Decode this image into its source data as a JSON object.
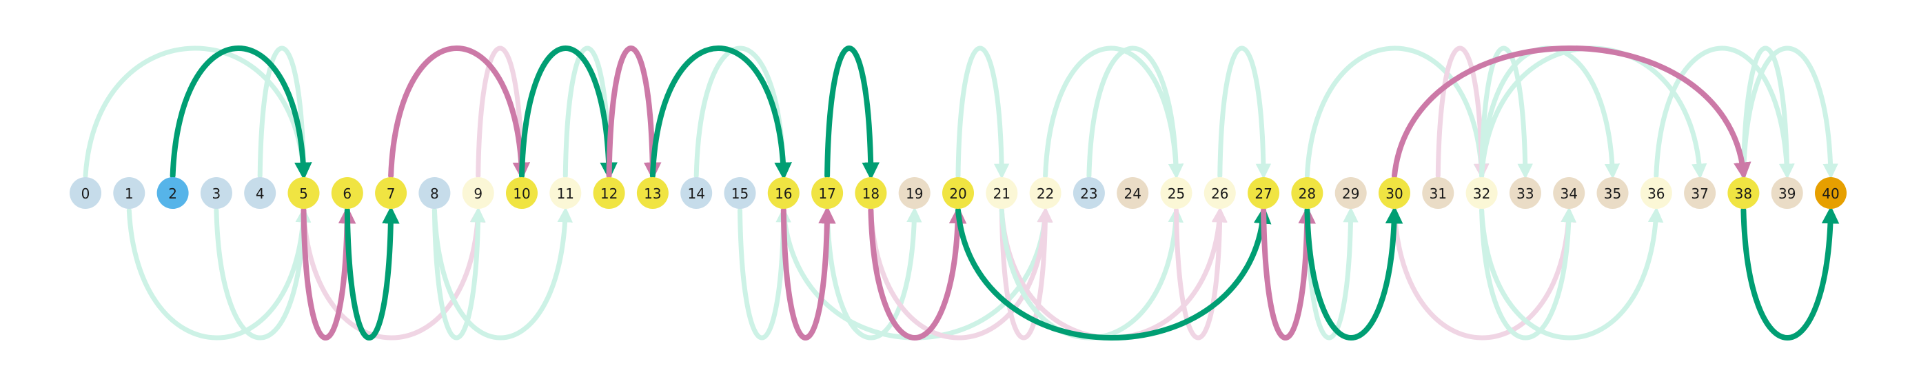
{
  "colors": {
    "start": "#56b4e9",
    "goal": "#e69f00",
    "path_node": "#f0e442",
    "visited": "#c6dcea",
    "frontier": "#fbf7d6",
    "pending": "#eadcc6",
    "forward_jump": "#009e73",
    "backward_jump": "#cc79a7",
    "forward_jump_faded": "#cdf2e6",
    "backward_jump_faded": "#f0d5e4"
  },
  "nodes": [
    {
      "label": "0",
      "state": "visited"
    },
    {
      "label": "1",
      "state": "visited"
    },
    {
      "label": "2",
      "state": "start"
    },
    {
      "label": "3",
      "state": "visited"
    },
    {
      "label": "4",
      "state": "visited"
    },
    {
      "label": "5",
      "state": "path_node"
    },
    {
      "label": "6",
      "state": "path_node"
    },
    {
      "label": "7",
      "state": "path_node"
    },
    {
      "label": "8",
      "state": "visited"
    },
    {
      "label": "9",
      "state": "frontier"
    },
    {
      "label": "10",
      "state": "path_node"
    },
    {
      "label": "11",
      "state": "frontier"
    },
    {
      "label": "12",
      "state": "path_node"
    },
    {
      "label": "13",
      "state": "path_node"
    },
    {
      "label": "14",
      "state": "visited"
    },
    {
      "label": "15",
      "state": "visited"
    },
    {
      "label": "16",
      "state": "path_node"
    },
    {
      "label": "17",
      "state": "path_node"
    },
    {
      "label": "18",
      "state": "path_node"
    },
    {
      "label": "19",
      "state": "pending"
    },
    {
      "label": "20",
      "state": "path_node"
    },
    {
      "label": "21",
      "state": "frontier"
    },
    {
      "label": "22",
      "state": "frontier"
    },
    {
      "label": "23",
      "state": "visited"
    },
    {
      "label": "24",
      "state": "pending"
    },
    {
      "label": "25",
      "state": "frontier"
    },
    {
      "label": "26",
      "state": "frontier"
    },
    {
      "label": "27",
      "state": "path_node"
    },
    {
      "label": "28",
      "state": "path_node"
    },
    {
      "label": "29",
      "state": "pending"
    },
    {
      "label": "30",
      "state": "path_node"
    },
    {
      "label": "31",
      "state": "pending"
    },
    {
      "label": "32",
      "state": "frontier"
    },
    {
      "label": "33",
      "state": "pending"
    },
    {
      "label": "34",
      "state": "pending"
    },
    {
      "label": "35",
      "state": "pending"
    },
    {
      "label": "36",
      "state": "frontier"
    },
    {
      "label": "37",
      "state": "pending"
    },
    {
      "label": "38",
      "state": "path_node"
    },
    {
      "label": "39",
      "state": "pending"
    },
    {
      "label": "40",
      "state": "goal"
    }
  ],
  "arcs": [
    {
      "from": 0,
      "to": 5,
      "side": "above",
      "peak": 0.8,
      "kind": "forward_jump_faded"
    },
    {
      "from": 4,
      "to": 5,
      "side": "above",
      "peak": 0.8,
      "kind": "forward_jump_faded"
    },
    {
      "from": 1,
      "to": 5,
      "side": "below",
      "peak": 0.8,
      "kind": "forward_jump_faded"
    },
    {
      "from": 3,
      "to": 5,
      "side": "below",
      "peak": 0.8,
      "kind": "forward_jump_faded"
    },
    {
      "from": 5,
      "to": 9,
      "side": "below",
      "peak": 0.8,
      "kind": "backward_jump_faded"
    },
    {
      "from": 8,
      "to": 11,
      "side": "below",
      "peak": 0.8,
      "kind": "forward_jump_faded"
    },
    {
      "from": 9,
      "to": 10,
      "side": "above",
      "peak": 0.8,
      "kind": "backward_jump_faded"
    },
    {
      "from": 8,
      "to": 9,
      "side": "below",
      "peak": 0.8,
      "kind": "forward_jump_faded"
    },
    {
      "from": 11,
      "to": 12,
      "side": "above",
      "peak": 0.8,
      "kind": "forward_jump_faded"
    },
    {
      "from": 14,
      "to": 16,
      "side": "above",
      "peak": 0.8,
      "kind": "forward_jump_faded"
    },
    {
      "from": 15,
      "to": 16,
      "side": "below",
      "peak": 0.8,
      "kind": "forward_jump_faded"
    },
    {
      "from": 17,
      "to": 19,
      "side": "below",
      "peak": 0.8,
      "kind": "forward_jump_faded"
    },
    {
      "from": 16,
      "to": 22,
      "side": "below",
      "peak": 0.8,
      "kind": "forward_jump_faded"
    },
    {
      "from": 18,
      "to": 22,
      "side": "below",
      "peak": 0.8,
      "kind": "backward_jump_faded"
    },
    {
      "from": 20,
      "to": 21,
      "side": "above",
      "peak": 0.8,
      "kind": "forward_jump_faded"
    },
    {
      "from": 21,
      "to": 22,
      "side": "below",
      "peak": 0.8,
      "kind": "backward_jump_faded"
    },
    {
      "from": 22,
      "to": 25,
      "side": "above",
      "peak": 0.8,
      "kind": "forward_jump_faded"
    },
    {
      "from": 23,
      "to": 25,
      "side": "above",
      "peak": 0.8,
      "kind": "forward_jump_faded"
    },
    {
      "from": 21,
      "to": 26,
      "side": "below",
      "peak": 0.8,
      "kind": "backward_jump_faded"
    },
    {
      "from": 21,
      "to": 25,
      "side": "below",
      "peak": 0.8,
      "kind": "forward_jump_faded"
    },
    {
      "from": 25,
      "to": 26,
      "side": "below",
      "peak": 0.8,
      "kind": "backward_jump_faded"
    },
    {
      "from": 26,
      "to": 27,
      "side": "above",
      "peak": 0.8,
      "kind": "forward_jump_faded"
    },
    {
      "from": 28,
      "to": 32,
      "side": "above",
      "peak": 0.8,
      "kind": "forward_jump_faded"
    },
    {
      "from": 28,
      "to": 29,
      "side": "below",
      "peak": 0.8,
      "kind": "forward_jump_faded"
    },
    {
      "from": 31,
      "to": 32,
      "side": "above",
      "peak": 0.8,
      "kind": "backward_jump_faded"
    },
    {
      "from": 32,
      "to": 33,
      "side": "above",
      "peak": 0.8,
      "kind": "forward_jump_faded"
    },
    {
      "from": 32,
      "to": 35,
      "side": "above",
      "peak": 0.8,
      "kind": "forward_jump_faded"
    },
    {
      "from": 32,
      "to": 37,
      "side": "above",
      "peak": 0.8,
      "kind": "forward_jump_faded"
    },
    {
      "from": 30,
      "to": 34,
      "side": "below",
      "peak": 0.8,
      "kind": "backward_jump_faded"
    },
    {
      "from": 32,
      "to": 34,
      "side": "below",
      "peak": 0.8,
      "kind": "forward_jump_faded"
    },
    {
      "from": 32,
      "to": 36,
      "side": "below",
      "peak": 0.8,
      "kind": "forward_jump_faded"
    },
    {
      "from": 36,
      "to": 39,
      "side": "above",
      "peak": 0.8,
      "kind": "forward_jump_faded"
    },
    {
      "from": 38,
      "to": 39,
      "side": "above",
      "peak": 0.8,
      "kind": "forward_jump_faded"
    },
    {
      "from": 38,
      "to": 40,
      "side": "above",
      "peak": 0.8,
      "kind": "forward_jump_faded"
    },
    {
      "from": 2,
      "to": 5,
      "side": "above",
      "peak": 0.8,
      "kind": "forward_jump"
    },
    {
      "from": 5,
      "to": 6,
      "side": "below",
      "peak": 0.8,
      "kind": "backward_jump"
    },
    {
      "from": 6,
      "to": 7,
      "side": "below",
      "peak": 0.8,
      "kind": "forward_jump"
    },
    {
      "from": 7,
      "to": 10,
      "side": "above",
      "peak": 0.8,
      "kind": "backward_jump"
    },
    {
      "from": 10,
      "to": 12,
      "side": "above",
      "peak": 0.8,
      "kind": "forward_jump"
    },
    {
      "from": 12,
      "to": 13,
      "side": "above",
      "peak": 0.8,
      "kind": "backward_jump"
    },
    {
      "from": 13,
      "to": 16,
      "side": "above",
      "peak": 0.8,
      "kind": "forward_jump"
    },
    {
      "from": 16,
      "to": 17,
      "side": "below",
      "peak": 0.8,
      "kind": "backward_jump"
    },
    {
      "from": 17,
      "to": 18,
      "side": "above",
      "peak": 0.8,
      "kind": "forward_jump"
    },
    {
      "from": 18,
      "to": 20,
      "side": "below",
      "peak": 0.8,
      "kind": "backward_jump"
    },
    {
      "from": 20,
      "to": 27,
      "side": "below",
      "peak": 0.8,
      "kind": "forward_jump"
    },
    {
      "from": 27,
      "to": 28,
      "side": "below",
      "peak": 0.8,
      "kind": "backward_jump"
    },
    {
      "from": 28,
      "to": 30,
      "side": "below",
      "peak": 0.8,
      "kind": "forward_jump"
    },
    {
      "from": 30,
      "to": 38,
      "side": "above",
      "peak": 0.8,
      "kind": "backward_jump"
    },
    {
      "from": 38,
      "to": 40,
      "side": "below",
      "peak": 0.8,
      "kind": "forward_jump"
    }
  ]
}
